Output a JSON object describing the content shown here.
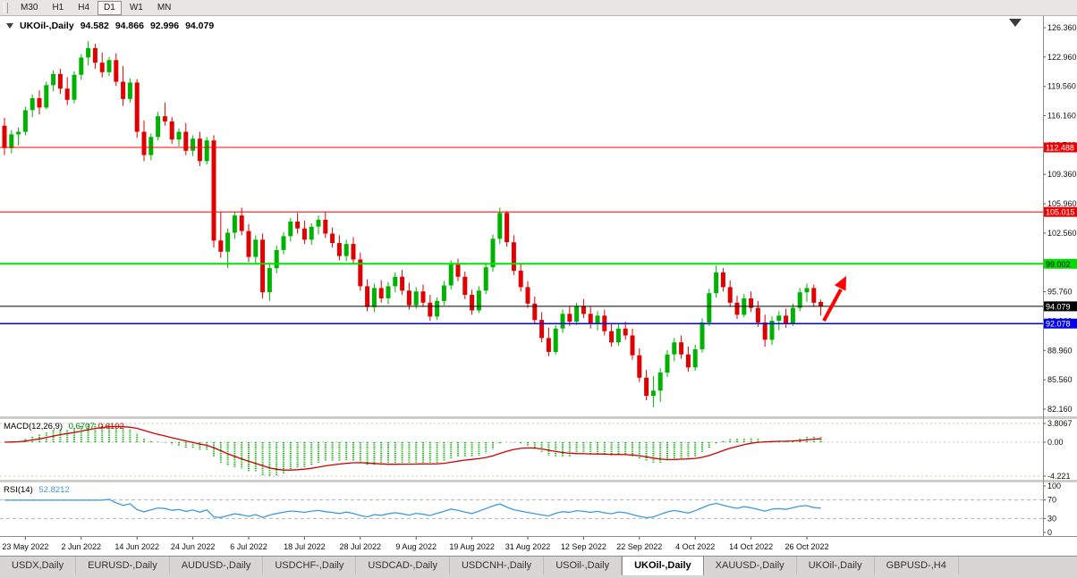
{
  "toolbar": {
    "timeframes": [
      "M30",
      "H1",
      "H4",
      "D1",
      "W1",
      "MN"
    ],
    "active_timeframe": "D1"
  },
  "chart_title": {
    "symbol": "UKOil-,Daily",
    "open": "94.582",
    "high": "94.866",
    "low": "92.996",
    "close": "94.079"
  },
  "chart_data": {
    "type": "candlestick",
    "symbol": "UKOil-,Daily",
    "ohlc_display": {
      "open": "94.582",
      "high": "94.866",
      "low": "92.996",
      "close": "94.079"
    },
    "candle_colors": {
      "up": "#00B200",
      "down": "#E00000"
    },
    "y_axis": {
      "labels": [
        "126.360",
        "122.960",
        "119.560",
        "116.160",
        "112.760",
        "109.360",
        "105.960",
        "102.560",
        "99.160",
        "95.760",
        "92.360",
        "88.960",
        "85.560",
        "82.160"
      ]
    },
    "x_labels": [
      {
        "text": "23 May 2022",
        "candle": 3
      },
      {
        "text": "2 Jun 2022",
        "candle": 11
      },
      {
        "text": "14 Jun 2022",
        "candle": 19
      },
      {
        "text": "24 Jun 2022",
        "candle": 27
      },
      {
        "text": "6 Jul 2022",
        "candle": 35
      },
      {
        "text": "18 Jul 2022",
        "candle": 43
      },
      {
        "text": "28 Jul 2022",
        "candle": 51
      },
      {
        "text": "9 Aug 2022",
        "candle": 59
      },
      {
        "text": "19 Aug 2022",
        "candle": 67
      },
      {
        "text": "31 Aug 2022",
        "candle": 75
      },
      {
        "text": "12 Sep 2022",
        "candle": 83
      },
      {
        "text": "22 Sep 2022",
        "candle": 91
      },
      {
        "text": "4 Oct 2022",
        "candle": 99
      },
      {
        "text": "14 Oct 2022",
        "candle": 107
      },
      {
        "text": "26 Oct 2022",
        "candle": 115
      }
    ],
    "lines": [
      {
        "price": 112.488,
        "label": "112.488",
        "color": "#FF0000",
        "width": 1,
        "tag_bg": "#EE0000",
        "tag_fg": "#FFFFFF"
      },
      {
        "price": 105.015,
        "label": "105.015",
        "color": "#FF0000",
        "width": 1,
        "tag_bg": "#EE0000",
        "tag_fg": "#FFFFFF"
      },
      {
        "price": 99.002,
        "label": "99.002",
        "color": "#00E200",
        "width": 2,
        "tag_bg": "#00DD00",
        "tag_fg": "#000000"
      },
      {
        "price": 94.079,
        "label": "94.079",
        "color": "#000000",
        "width": 1,
        "tag_bg": "#000000",
        "tag_fg": "#FFFFFF"
      },
      {
        "price": 92.078,
        "label": "92.078",
        "color": "#0000FF",
        "width": 1.5,
        "tag_bg": "#0000EE",
        "tag_fg": "#FFFFFF"
      }
    ],
    "arrow": {
      "color": "#FF0000",
      "direction": "up-right"
    },
    "indicators": [
      {
        "name": "MACD(12,26,9)",
        "values": [
          "0.6707",
          "0.6102"
        ],
        "value_colors": [
          "#008000",
          "#CC0000"
        ],
        "axis_labels": [
          "3.8067",
          "0.00",
          "-4.221"
        ],
        "histogram_color": "#00B200",
        "signal_color": "#D40000"
      },
      {
        "name": "RSI(14)",
        "values": [
          "52.8212"
        ],
        "value_colors": [
          "#3E9ADE"
        ],
        "axis_labels": [
          "100",
          "70",
          "30",
          "0"
        ],
        "levels": [
          70,
          30
        ],
        "line_color": "#3E9ADE"
      }
    ],
    "candles": [
      [
        115.0,
        115.9,
        111.6,
        112.4
      ],
      [
        112.4,
        114.5,
        111.8,
        114.0
      ],
      [
        114.0,
        114.8,
        112.7,
        114.3
      ],
      [
        114.3,
        117.2,
        113.9,
        116.8
      ],
      [
        116.8,
        118.6,
        116.0,
        118.2
      ],
      [
        118.2,
        119.1,
        116.3,
        117.1
      ],
      [
        117.1,
        120.1,
        116.9,
        119.7
      ],
      [
        119.7,
        121.4,
        119.0,
        121.0
      ],
      [
        121.0,
        121.6,
        118.7,
        119.3
      ],
      [
        119.3,
        120.6,
        117.4,
        118.0
      ],
      [
        118.0,
        121.3,
        117.6,
        120.9
      ],
      [
        120.9,
        123.3,
        120.3,
        122.9
      ],
      [
        122.9,
        124.8,
        122.0,
        124.0
      ],
      [
        124.0,
        124.5,
        121.6,
        122.3
      ],
      [
        122.3,
        123.5,
        120.6,
        121.2
      ],
      [
        121.2,
        123.0,
        120.8,
        122.6
      ],
      [
        122.6,
        123.4,
        119.6,
        120.1
      ],
      [
        120.1,
        121.9,
        117.3,
        118.1
      ],
      [
        118.1,
        120.5,
        117.7,
        120.0
      ],
      [
        120.0,
        120.4,
        113.6,
        114.3
      ],
      [
        114.3,
        115.6,
        110.9,
        111.6
      ],
      [
        111.6,
        114.1,
        111.0,
        113.7
      ],
      [
        113.7,
        116.6,
        113.3,
        116.1
      ],
      [
        116.1,
        117.7,
        115.0,
        115.5
      ],
      [
        115.5,
        116.0,
        112.9,
        113.4
      ],
      [
        113.4,
        114.7,
        112.6,
        114.3
      ],
      [
        114.3,
        115.3,
        111.6,
        112.1
      ],
      [
        112.1,
        113.9,
        111.5,
        113.5
      ],
      [
        113.5,
        114.3,
        110.3,
        110.9
      ],
      [
        110.9,
        113.7,
        110.5,
        113.3
      ],
      [
        113.3,
        113.9,
        100.9,
        101.7
      ],
      [
        101.7,
        105.0,
        99.7,
        100.4
      ],
      [
        100.4,
        103.1,
        98.5,
        102.6
      ],
      [
        102.6,
        105.1,
        101.9,
        104.6
      ],
      [
        104.6,
        105.5,
        102.3,
        102.8
      ],
      [
        102.8,
        103.6,
        99.2,
        99.8
      ],
      [
        99.8,
        102.3,
        98.9,
        101.8
      ],
      [
        101.8,
        102.5,
        95.0,
        95.7
      ],
      [
        95.7,
        99.1,
        94.7,
        98.5
      ],
      [
        98.5,
        101.1,
        97.9,
        100.6
      ],
      [
        100.6,
        102.7,
        100.1,
        102.2
      ],
      [
        102.2,
        104.3,
        101.6,
        103.9
      ],
      [
        103.9,
        104.9,
        102.5,
        103.1
      ],
      [
        103.1,
        104.0,
        101.3,
        101.8
      ],
      [
        101.8,
        103.7,
        101.2,
        103.3
      ],
      [
        103.3,
        104.6,
        102.4,
        104.1
      ],
      [
        104.1,
        105.0,
        102.0,
        102.5
      ],
      [
        102.5,
        103.2,
        100.9,
        101.4
      ],
      [
        101.4,
        102.3,
        99.4,
        99.9
      ],
      [
        99.9,
        101.8,
        99.3,
        101.3
      ],
      [
        101.3,
        102.1,
        99.0,
        99.5
      ],
      [
        99.5,
        100.3,
        95.9,
        96.4
      ],
      [
        96.4,
        97.2,
        93.5,
        94.0
      ],
      [
        94.0,
        96.7,
        93.4,
        96.2
      ],
      [
        96.2,
        97.1,
        94.5,
        95.0
      ],
      [
        95.0,
        96.9,
        94.3,
        96.4
      ],
      [
        96.4,
        98.0,
        95.7,
        97.5
      ],
      [
        97.5,
        98.3,
        95.4,
        95.9
      ],
      [
        95.9,
        96.8,
        93.7,
        94.2
      ],
      [
        94.2,
        96.3,
        93.8,
        95.8
      ],
      [
        95.8,
        96.6,
        94.0,
        94.5
      ],
      [
        94.5,
        95.4,
        92.4,
        92.9
      ],
      [
        92.9,
        95.1,
        92.5,
        94.7
      ],
      [
        94.7,
        97.0,
        94.2,
        96.5
      ],
      [
        96.5,
        99.4,
        96.0,
        98.9
      ],
      [
        98.9,
        99.6,
        97.0,
        97.5
      ],
      [
        97.5,
        98.1,
        94.9,
        95.4
      ],
      [
        95.4,
        96.0,
        93.1,
        93.6
      ],
      [
        93.6,
        96.4,
        93.3,
        95.9
      ],
      [
        95.9,
        99.1,
        95.5,
        98.6
      ],
      [
        98.6,
        102.4,
        98.1,
        101.9
      ],
      [
        101.9,
        105.5,
        101.3,
        104.9
      ],
      [
        104.9,
        105.1,
        101.0,
        101.5
      ],
      [
        101.5,
        102.3,
        97.7,
        98.2
      ],
      [
        98.2,
        99.1,
        95.8,
        96.3
      ],
      [
        96.3,
        97.0,
        93.9,
        94.4
      ],
      [
        94.4,
        95.2,
        92.0,
        92.5
      ],
      [
        92.5,
        93.4,
        89.9,
        90.4
      ],
      [
        90.4,
        91.6,
        88.3,
        88.8
      ],
      [
        88.8,
        91.9,
        88.5,
        91.5
      ],
      [
        91.5,
        93.7,
        91.0,
        93.2
      ],
      [
        93.2,
        94.1,
        91.8,
        92.3
      ],
      [
        92.3,
        94.5,
        91.9,
        94.1
      ],
      [
        94.1,
        94.9,
        92.7,
        93.2
      ],
      [
        93.2,
        94.0,
        91.5,
        92.0
      ],
      [
        92.0,
        93.5,
        91.3,
        93.0
      ],
      [
        93.0,
        93.7,
        90.7,
        91.2
      ],
      [
        91.2,
        92.1,
        89.4,
        89.9
      ],
      [
        89.9,
        92.0,
        89.5,
        91.5
      ],
      [
        91.5,
        92.3,
        90.2,
        90.7
      ],
      [
        90.7,
        91.5,
        87.9,
        88.4
      ],
      [
        88.4,
        89.2,
        85.3,
        85.8
      ],
      [
        85.8,
        86.7,
        83.2,
        83.7
      ],
      [
        83.7,
        86.0,
        82.4,
        84.3
      ],
      [
        84.3,
        86.9,
        83.0,
        86.4
      ],
      [
        86.4,
        89.0,
        85.9,
        88.5
      ],
      [
        88.5,
        90.4,
        87.7,
        89.9
      ],
      [
        89.9,
        90.7,
        88.0,
        88.5
      ],
      [
        88.5,
        89.4,
        86.5,
        87.0
      ],
      [
        87.0,
        89.6,
        86.6,
        89.1
      ],
      [
        89.1,
        92.7,
        88.7,
        92.2
      ],
      [
        92.2,
        96.1,
        91.8,
        95.6
      ],
      [
        95.6,
        98.8,
        95.1,
        98.0
      ],
      [
        98.0,
        98.5,
        95.8,
        96.3
      ],
      [
        96.3,
        97.1,
        94.0,
        94.5
      ],
      [
        94.5,
        95.3,
        92.6,
        93.1
      ],
      [
        93.1,
        95.5,
        92.8,
        95.0
      ],
      [
        95.0,
        95.8,
        93.4,
        93.9
      ],
      [
        93.9,
        94.7,
        91.7,
        92.2
      ],
      [
        92.2,
        93.1,
        89.4,
        90.2
      ],
      [
        90.2,
        92.9,
        89.6,
        92.4
      ],
      [
        92.4,
        93.5,
        91.3,
        93.0
      ],
      [
        93.0,
        93.8,
        91.6,
        92.1
      ],
      [
        92.1,
        94.4,
        91.8,
        93.9
      ],
      [
        93.9,
        96.2,
        93.5,
        95.7
      ],
      [
        95.7,
        96.7,
        94.6,
        96.2
      ],
      [
        96.2,
        96.6,
        94.0,
        94.5
      ],
      [
        94.582,
        94.866,
        92.996,
        94.079
      ]
    ]
  },
  "tabs": {
    "items": [
      {
        "label": "USDX,Daily",
        "active": false
      },
      {
        "label": "EURUSD-,Daily",
        "active": false
      },
      {
        "label": "AUDUSD-,Daily",
        "active": false
      },
      {
        "label": "USDCHF-,Daily",
        "active": false
      },
      {
        "label": "USDCAD-,Daily",
        "active": false
      },
      {
        "label": "USDCNH-,Daily",
        "active": false
      },
      {
        "label": "USOil-,Daily",
        "active": false
      },
      {
        "label": "UKOil-,Daily",
        "active": true
      },
      {
        "label": "XAUUSD-,Daily",
        "active": false
      },
      {
        "label": "UKOil-,Daily",
        "active": false
      },
      {
        "label": "GBPUSD-,H4",
        "active": false
      }
    ]
  }
}
